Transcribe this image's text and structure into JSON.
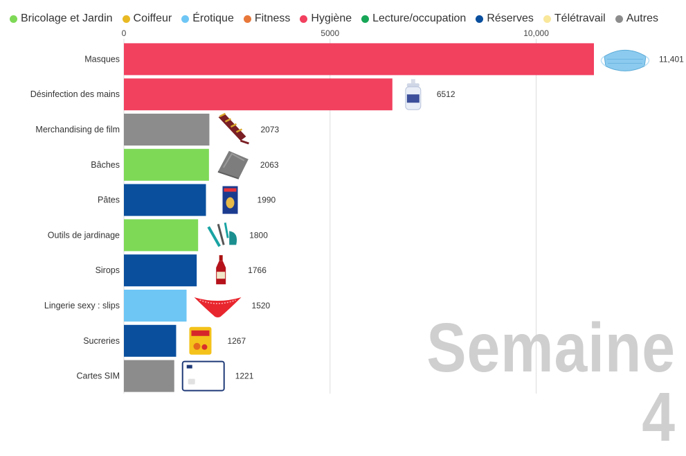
{
  "legend": [
    {
      "label": "Bricolage et Jardin",
      "color": "#7ed957"
    },
    {
      "label": "Coiffeur",
      "color": "#e8b923"
    },
    {
      "label": "Érotique",
      "color": "#6ec6f5"
    },
    {
      "label": "Fitness",
      "color": "#e8783a"
    },
    {
      "label": "Hygiène",
      "color": "#f2405f"
    },
    {
      "label": "Lecture/occupation",
      "color": "#17a657"
    },
    {
      "label": "Réserves",
      "color": "#0a4f9e"
    },
    {
      "label": "Télétravail",
      "color": "#f9e79a"
    },
    {
      "label": "Autres",
      "color": "#8c8c8c"
    }
  ],
  "watermark": "Semaine 4",
  "chart_data": {
    "type": "bar",
    "orientation": "horizontal",
    "xlim": [
      0,
      11401
    ],
    "xticks": [
      0,
      5000,
      10000
    ],
    "xtick_labels": [
      "0",
      "5000",
      "10,000"
    ],
    "grid": true,
    "legend_position": "top",
    "bars": [
      {
        "category": "Masques",
        "value": 11401,
        "value_label": "11,401",
        "group": "Hygiène",
        "icon": "face-mask-icon"
      },
      {
        "category": "Désinfection des mains",
        "value": 6512,
        "value_label": "6512",
        "group": "Hygiène",
        "icon": "hand-sanitizer-icon"
      },
      {
        "category": "Merchandising de film",
        "value": 2073,
        "value_label": "2073",
        "group": "Autres",
        "icon": "scarf-icon"
      },
      {
        "category": "Bâches",
        "value": 2063,
        "value_label": "2063",
        "group": "Bricolage et Jardin",
        "icon": "tarp-icon"
      },
      {
        "category": "Pâtes",
        "value": 1990,
        "value_label": "1990",
        "group": "Réserves",
        "icon": "pasta-box-icon"
      },
      {
        "category": "Outils de jardinage",
        "value": 1800,
        "value_label": "1800",
        "group": "Bricolage et Jardin",
        "icon": "garden-tools-icon"
      },
      {
        "category": "Sirops",
        "value": 1766,
        "value_label": "1766",
        "group": "Réserves",
        "icon": "syrup-bottle-icon"
      },
      {
        "category": "Lingerie sexy : slips",
        "value": 1520,
        "value_label": "1520",
        "group": "Érotique",
        "icon": "lingerie-icon"
      },
      {
        "category": "Sucreries",
        "value": 1267,
        "value_label": "1267",
        "group": "Réserves",
        "icon": "candy-bag-icon"
      },
      {
        "category": "Cartes SIM",
        "value": 1221,
        "value_label": "1221",
        "group": "Autres",
        "icon": "sim-card-icon"
      }
    ]
  }
}
